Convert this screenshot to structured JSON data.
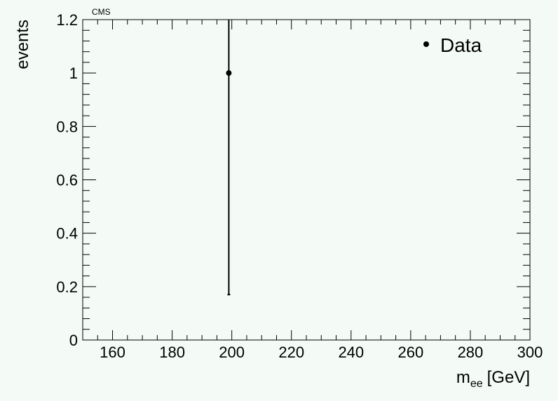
{
  "chart_data": {
    "type": "scatter",
    "title": "CMS",
    "xlabel_main": "m",
    "xlabel_sub": "ee",
    "xlabel_unit": "[GeV]",
    "ylabel": "events",
    "xlim": [
      150,
      300
    ],
    "ylim": [
      0,
      1.2
    ],
    "x_ticks": [
      160,
      180,
      200,
      220,
      240,
      260,
      280,
      300
    ],
    "x_tick_labels": [
      "160",
      "180",
      "200",
      "220",
      "240",
      "260",
      "280",
      "300"
    ],
    "y_ticks": [
      0,
      0.2,
      0.4,
      0.6,
      0.8,
      1,
      1.2
    ],
    "y_tick_labels": [
      "0",
      "0.2",
      "0.4",
      "0.6",
      "0.8",
      "1",
      "1.2"
    ],
    "grid": false,
    "legend_position": "top-right",
    "series": [
      {
        "name": "Data",
        "color": "#000000",
        "points": [
          {
            "x": 199,
            "y": 1,
            "y_err_low": 0.83,
            "y_err_high": 2.3
          }
        ]
      }
    ]
  }
}
